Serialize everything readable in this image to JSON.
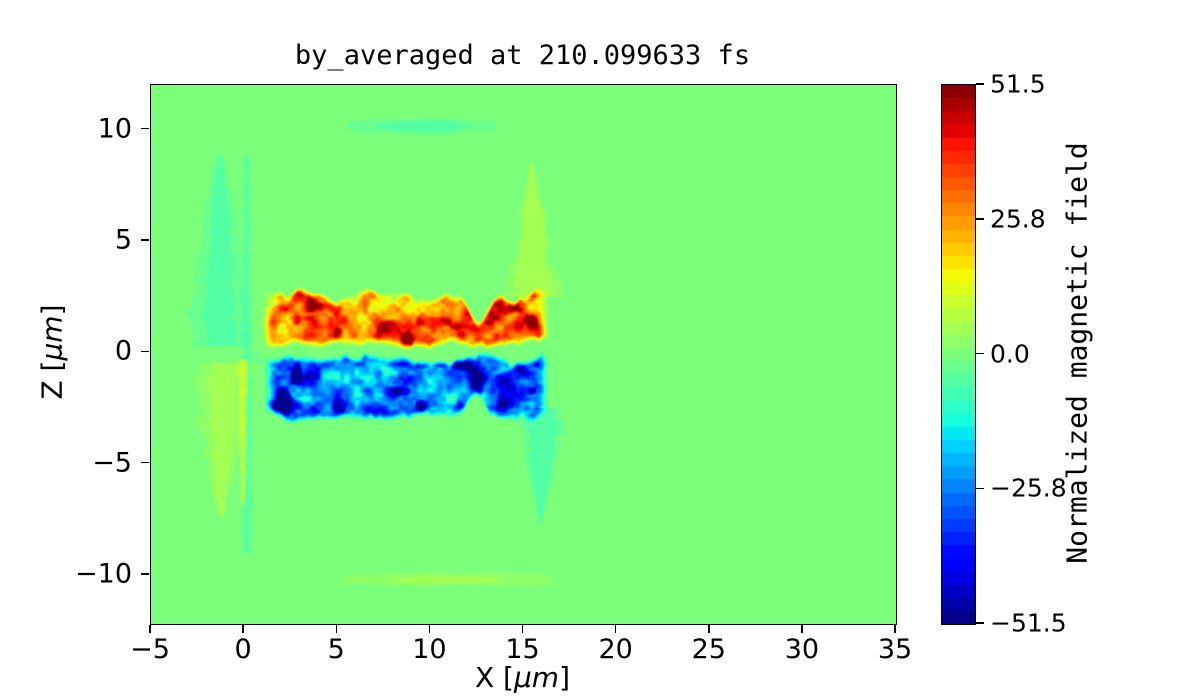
{
  "chart_data": {
    "type": "heatmap",
    "title": "by_averaged at 210.099633 fs",
    "xlabel": {
      "prefix": "X [",
      "unit": "μm",
      "suffix": "]"
    },
    "ylabel": {
      "prefix": "Z [",
      "unit": "μm",
      "suffix": "]"
    },
    "colorbar_label": "Normalized magnetic field",
    "colormap": "jet",
    "contour_levels": 41,
    "vmin": -51.5,
    "vmax": 51.5,
    "background_value": 0.0,
    "x_range": [
      -5,
      35
    ],
    "z_range": [
      -12.2,
      12.0
    ],
    "x_ticks": [
      {
        "v": -5,
        "label": "−5"
      },
      {
        "v": 0,
        "label": "0"
      },
      {
        "v": 5,
        "label": "5"
      },
      {
        "v": 10,
        "label": "10"
      },
      {
        "v": 15,
        "label": "15"
      },
      {
        "v": 20,
        "label": "20"
      },
      {
        "v": 25,
        "label": "25"
      },
      {
        "v": 30,
        "label": "30"
      },
      {
        "v": 35,
        "label": "35"
      }
    ],
    "z_ticks": [
      {
        "v": 10,
        "label": "10"
      },
      {
        "v": 5,
        "label": "5"
      },
      {
        "v": 0,
        "label": "0"
      },
      {
        "v": -5,
        "label": "−5"
      },
      {
        "v": -10,
        "label": "−10"
      }
    ],
    "colorbar_ticks": [
      {
        "v": 51.5,
        "label": "51.5"
      },
      {
        "v": 25.75,
        "label": "25.8"
      },
      {
        "v": 0,
        "label": "0.0"
      },
      {
        "v": -25.75,
        "label": "−25.8"
      },
      {
        "v": -51.5,
        "label": "−51.5"
      }
    ],
    "features": {
      "bands": [
        {
          "name": "positive-field-band",
          "x_start": 0.9,
          "x_end": 16.45,
          "z_bottom": 0.22,
          "z_top": 2.65,
          "sign": 1,
          "notch_x": 12.65,
          "notch_depth": 1.45,
          "seed": 3
        },
        {
          "name": "negative-field-band",
          "x_start": 1.0,
          "x_end": 16.45,
          "z_bottom": -3.05,
          "z_top": -0.28,
          "sign": -1,
          "notch_x": 12.4,
          "notch_depth": 1.0,
          "seed": 29
        }
      ],
      "wedges": [
        {
          "name": "left-teal-wedge",
          "x_center": -1.3,
          "z_apex": 9.0,
          "z_base": -0.5,
          "halfwidth": 2.1,
          "taper": 0.65,
          "value": -4.5
        },
        {
          "name": "left-teal-spike",
          "x_center": 0.15,
          "z_apex": 8.8,
          "z_base": -9.0,
          "halfwidth": 0.35,
          "taper": 0.12,
          "value": -4
        },
        {
          "name": "left-yellow-wedge",
          "x_center": -1.2,
          "z_apex": -7.5,
          "z_base": 0.3,
          "halfwidth": 1.9,
          "taper": 0.7,
          "value": 4.5
        },
        {
          "name": "left-yellow-spike",
          "x_center": -0.05,
          "z_apex": -6.8,
          "z_base": -0.3,
          "halfwidth": 0.3,
          "taper": 0.25,
          "value": 9
        },
        {
          "name": "right-yellow-plume",
          "x_center": 15.45,
          "z_apex": 8.6,
          "z_base": 2.5,
          "halfwidth": 1.5,
          "taper": 0.8,
          "value": 5.5
        },
        {
          "name": "right-teal-plume",
          "x_center": 15.9,
          "z_apex": -7.7,
          "z_base": -2.5,
          "halfwidth": 1.5,
          "taper": 0.8,
          "value": -5.5
        }
      ],
      "lenses": [
        {
          "name": "top-teal-lens",
          "x_start": 5.3,
          "x_end": 13.8,
          "z_center": 10.15,
          "half_height": 0.33,
          "value": -5
        },
        {
          "name": "bottom-yellow-lens",
          "x_start": 4.8,
          "x_end": 17.0,
          "z_center": -10.2,
          "half_height": 0.33,
          "value": 4.5
        }
      ]
    }
  }
}
